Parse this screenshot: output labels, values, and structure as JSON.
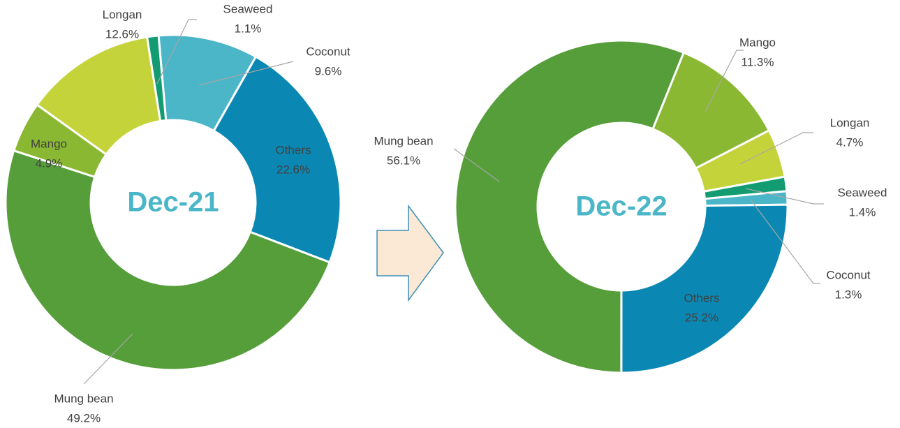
{
  "chart_data": [
    {
      "type": "donut",
      "title": "Dec-21",
      "categories": [
        "Coconut",
        "Others",
        "Mung bean",
        "Mango",
        "Longan",
        "Seaweed"
      ],
      "values": [
        9.6,
        22.6,
        49.2,
        4.9,
        12.6,
        1.1
      ],
      "value_labels": [
        "9.6%",
        "22.6%",
        "49.2%",
        "4.9%",
        "12.6%",
        "1.1%"
      ],
      "colors": [
        "#4bb6c8",
        "#0a88b3",
        "#559e3a",
        "#8ab833",
        "#c5d33b",
        "#139b72"
      ]
    },
    {
      "type": "donut",
      "title": "Dec-22",
      "categories": [
        "Mango",
        "Longan",
        "Seaweed",
        "Coconut",
        "Others",
        "Mung bean"
      ],
      "values": [
        11.3,
        4.7,
        1.4,
        1.3,
        25.2,
        56.1
      ],
      "value_labels": [
        "11.3%",
        "4.7%",
        "1.4%",
        "1.3%",
        "25.2%",
        "56.1%"
      ],
      "colors": [
        "#8ab833",
        "#c5d33b",
        "#139b72",
        "#4bb6c8",
        "#0a88b3",
        "#559e3a"
      ]
    }
  ]
}
